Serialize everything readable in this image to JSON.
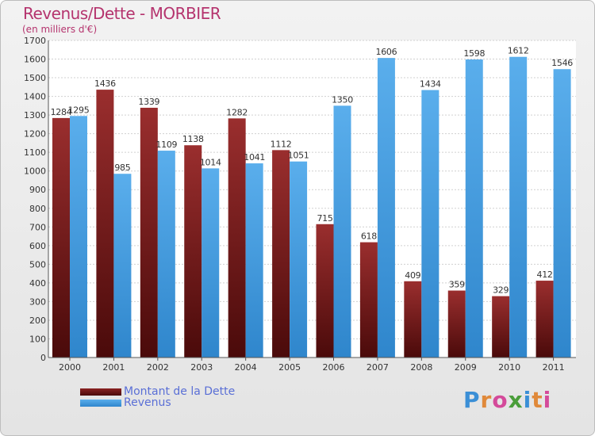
{
  "title": "Revenus/Dette - MORBIER",
  "subtitle": "(en milliers d'€)",
  "colors": {
    "dette": "#7a1a1a",
    "revenus": "#3f9ee6",
    "title": "#b5346e",
    "legend_text": "#5a6fd6"
  },
  "logo": {
    "text": "Proxiti",
    "letters": [
      "P",
      "r",
      "o",
      "x",
      "i",
      "t",
      "i"
    ],
    "letter_colors": [
      "#3b8fd6",
      "#e0893a",
      "#d44a9a",
      "#4a9e3a",
      "#3b8fd6",
      "#e0893a",
      "#d44a9a"
    ]
  },
  "chart_data": {
    "type": "bar",
    "categories": [
      "2000",
      "2001",
      "2002",
      "2003",
      "2004",
      "2005",
      "2006",
      "2007",
      "2008",
      "2009",
      "2010",
      "2011"
    ],
    "series": [
      {
        "name": "Montant de la Dette",
        "values": [
          1284,
          1436,
          1339,
          1138,
          1282,
          1112,
          715,
          618,
          409,
          359,
          329,
          412
        ]
      },
      {
        "name": "Revenus",
        "values": [
          1295,
          985,
          1109,
          1014,
          1041,
          1051,
          1350,
          1606,
          1434,
          1598,
          1612,
          1546
        ]
      }
    ],
    "ylim": [
      0,
      1700
    ],
    "yticks": [
      0,
      100,
      200,
      300,
      400,
      500,
      600,
      700,
      800,
      900,
      1000,
      1100,
      1200,
      1300,
      1400,
      1500,
      1600,
      1700
    ],
    "grid": true,
    "legend_position": "bottom-left"
  }
}
